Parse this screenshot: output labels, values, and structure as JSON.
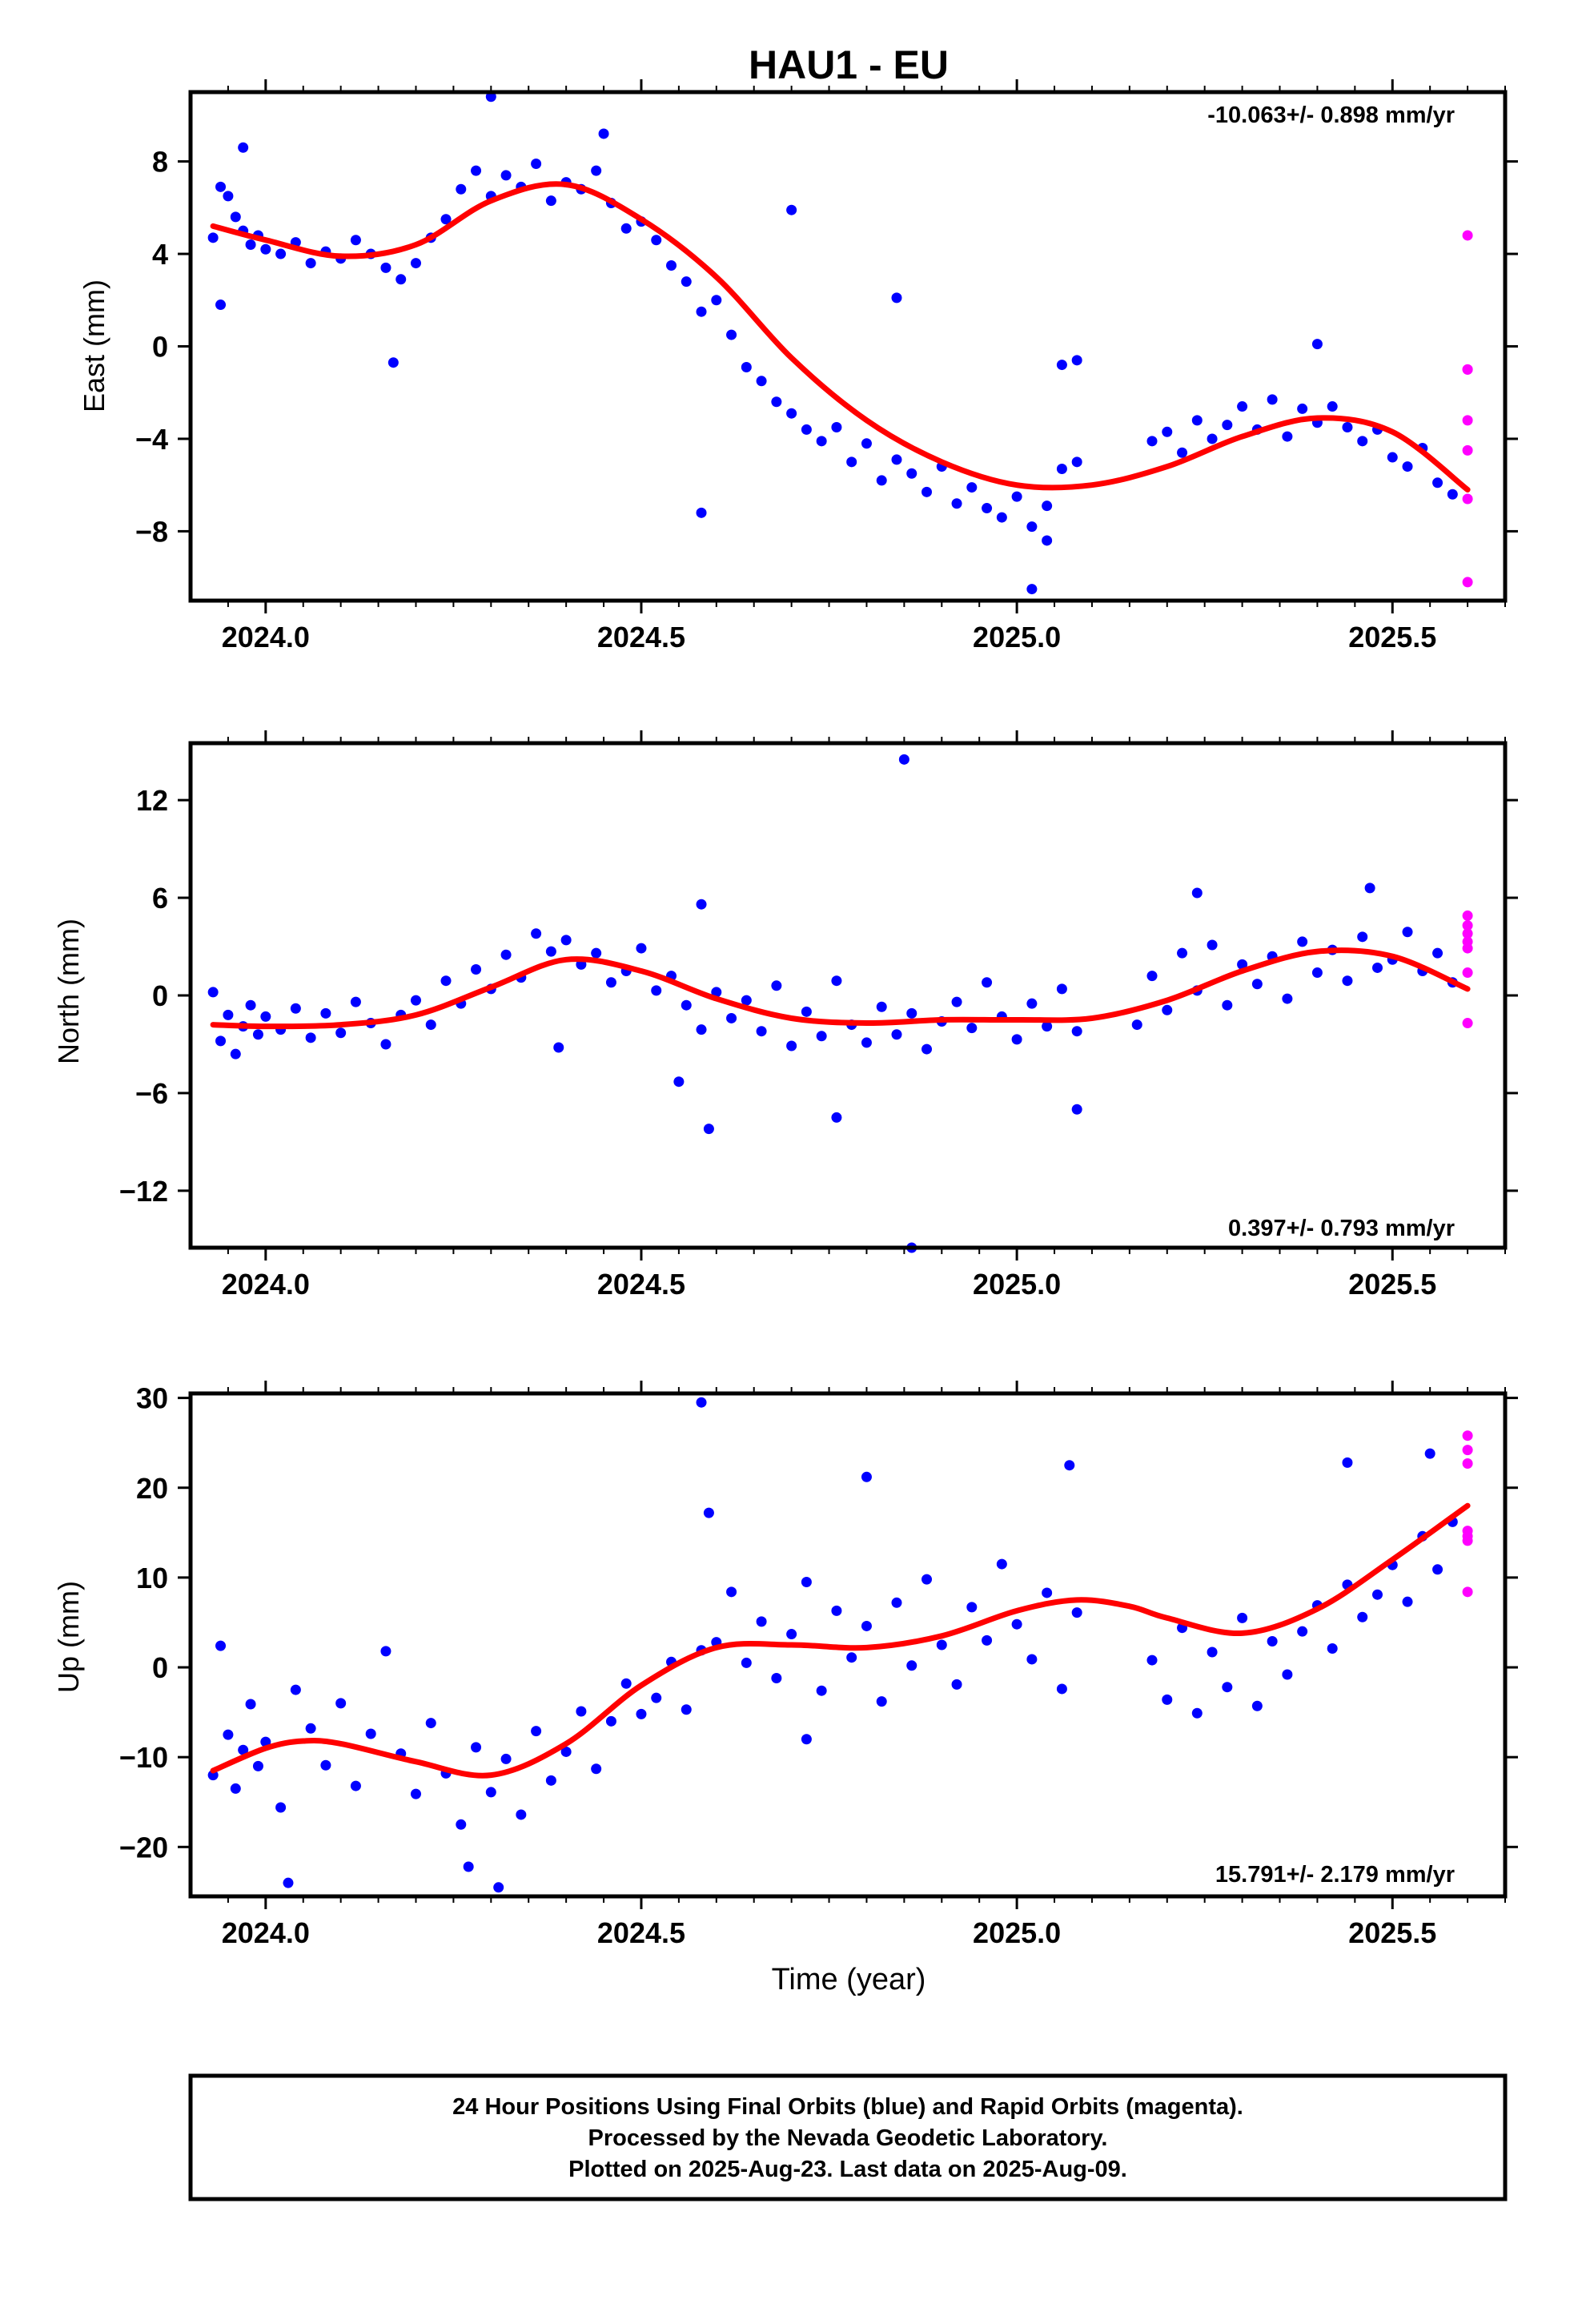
{
  "title": "HAU1 - EU",
  "x_axis_label": "Time (year)",
  "footer": [
    "24 Hour Positions Using Final Orbits (blue) and Rapid Orbits (magenta).",
    "Processed by the Nevada Geodetic Laboratory.",
    "Plotted on 2025-Aug-23. Last data on 2025-Aug-09."
  ],
  "colors": {
    "final": "#0000ff",
    "rapid": "#ff00ff",
    "model": "#ff0000",
    "axis": "#000000"
  },
  "chart_data": [
    {
      "type": "scatter",
      "ylabel": "East (mm)",
      "rate_text": "-10.063+/- 0.898 mm/yr",
      "rate_position": "top-right",
      "xlim": [
        2023.9,
        2025.65
      ],
      "ylim": [
        -11,
        11
      ],
      "xticks": [
        2024.0,
        2024.5,
        2025.0,
        2025.5
      ],
      "xtick_labels": [
        "2024.0",
        "2024.5",
        "2025.0",
        "2025.5"
      ],
      "yticks": [
        8,
        4,
        0,
        -4,
        -8
      ],
      "ytick_labels": [
        "8",
        "4",
        "0",
        "−4",
        "−8"
      ],
      "trend": {
        "x": [
          2023.93,
          2024.0,
          2024.1,
          2024.2,
          2024.3,
          2024.4,
          2024.5,
          2024.6,
          2024.7,
          2024.8,
          2024.9,
          2025.0,
          2025.1,
          2025.2,
          2025.3,
          2025.4,
          2025.5,
          2025.6
        ],
        "y": [
          5.2,
          4.6,
          3.9,
          4.4,
          6.3,
          7.0,
          5.5,
          3.0,
          -0.5,
          -3.2,
          -5.0,
          -6.0,
          -6.0,
          -5.2,
          -3.9,
          -3.1,
          -3.7,
          -6.2
        ]
      },
      "series": [
        {
          "role": "final",
          "x": [
            2023.93,
            2023.94,
            2023.95,
            2023.96,
            2023.97,
            2023.98,
            2023.99,
            2024.0,
            2024.02,
            2024.04,
            2024.06,
            2024.08,
            2024.1,
            2024.12,
            2024.14,
            2024.16,
            2024.18,
            2024.2,
            2024.22,
            2024.24,
            2024.26,
            2024.28,
            2024.3,
            2024.32,
            2024.34,
            2024.36,
            2024.38,
            2024.4,
            2024.42,
            2024.44,
            2024.46,
            2024.48,
            2024.5,
            2024.52,
            2024.54,
            2024.56,
            2024.58,
            2024.6,
            2024.62,
            2024.64,
            2024.66,
            2024.68,
            2024.7,
            2024.72,
            2024.74,
            2024.76,
            2024.78,
            2024.8,
            2024.82,
            2024.84,
            2024.86,
            2024.88,
            2024.9,
            2024.92,
            2024.94,
            2024.96,
            2024.98,
            2025.0,
            2025.02,
            2025.04,
            2025.06,
            2025.08,
            2025.18,
            2025.2,
            2025.22,
            2025.24,
            2025.26,
            2025.28,
            2025.3,
            2025.32,
            2025.34,
            2025.36,
            2025.38,
            2025.4,
            2025.42,
            2025.44,
            2025.46,
            2025.48,
            2025.5,
            2025.52,
            2025.54,
            2025.56,
            2025.58,
            2023.94,
            2023.97,
            2024.17,
            2024.3,
            2024.45,
            2024.58,
            2024.7,
            2024.84,
            2025.06,
            2025.02,
            2025.04,
            2025.08,
            2025.4
          ],
          "y": [
            4.7,
            6.9,
            6.5,
            5.6,
            5.0,
            4.4,
            4.8,
            4.2,
            4.0,
            4.5,
            3.6,
            4.1,
            3.8,
            4.6,
            4.0,
            3.4,
            2.9,
            3.6,
            4.7,
            5.5,
            6.8,
            7.6,
            6.5,
            7.4,
            6.9,
            7.9,
            6.3,
            7.1,
            6.8,
            7.6,
            6.2,
            5.1,
            5.4,
            4.6,
            3.5,
            2.8,
            1.5,
            2.0,
            0.5,
            -0.9,
            -1.5,
            -2.4,
            -2.9,
            -3.6,
            -4.1,
            -3.5,
            -5.0,
            -4.2,
            -5.8,
            -4.9,
            -5.5,
            -6.3,
            -5.2,
            -6.8,
            -6.1,
            -7.0,
            -7.4,
            -6.5,
            -7.8,
            -6.9,
            -5.3,
            -5.0,
            -4.1,
            -3.7,
            -4.6,
            -3.2,
            -4.0,
            -3.4,
            -2.6,
            -3.6,
            -2.3,
            -3.9,
            -2.7,
            -3.3,
            -2.6,
            -3.5,
            -4.1,
            -3.6,
            -4.8,
            -5.2,
            -4.4,
            -5.9,
            -6.4,
            1.8,
            8.6,
            -0.7,
            10.8,
            9.2,
            -7.2,
            5.9,
            2.1,
            -0.8,
            -10.5,
            -8.4,
            -0.6,
            0.1
          ]
        },
        {
          "role": "rapid",
          "x": [
            2025.6,
            2025.6,
            2025.6,
            2025.6,
            2025.6,
            2025.6,
            2025.6
          ],
          "y": [
            4.8,
            -1.0,
            -1.0,
            -3.2,
            -4.5,
            -6.6,
            -10.2
          ]
        }
      ]
    },
    {
      "type": "scatter",
      "ylabel": "North (mm)",
      "rate_text": "0.397+/- 0.793 mm/yr",
      "rate_position": "bottom-right",
      "xlim": [
        2023.9,
        2025.65
      ],
      "ylim": [
        -15.5,
        15.5
      ],
      "xticks": [
        2024.0,
        2024.5,
        2025.0,
        2025.5
      ],
      "xtick_labels": [
        "2024.0",
        "2024.5",
        "2025.0",
        "2025.5"
      ],
      "yticks": [
        12,
        6,
        0,
        -6,
        -12
      ],
      "ytick_labels": [
        "12",
        "6",
        "0",
        "−6",
        "−12"
      ],
      "trend": {
        "x": [
          2023.93,
          2024.0,
          2024.1,
          2024.2,
          2024.3,
          2024.4,
          2024.5,
          2024.6,
          2024.7,
          2024.8,
          2024.9,
          2025.0,
          2025.1,
          2025.2,
          2025.3,
          2025.4,
          2025.5,
          2025.6
        ],
        "y": [
          -1.8,
          -1.9,
          -1.8,
          -1.2,
          0.5,
          2.2,
          1.5,
          -0.2,
          -1.4,
          -1.7,
          -1.5,
          -1.5,
          -1.4,
          -0.3,
          1.5,
          2.7,
          2.4,
          0.4
        ]
      },
      "series": [
        {
          "role": "final",
          "x": [
            2023.93,
            2023.94,
            2023.95,
            2023.96,
            2023.97,
            2023.98,
            2023.99,
            2024.0,
            2024.02,
            2024.04,
            2024.06,
            2024.08,
            2024.1,
            2024.12,
            2024.14,
            2024.16,
            2024.18,
            2024.2,
            2024.22,
            2024.24,
            2024.26,
            2024.28,
            2024.3,
            2024.32,
            2024.34,
            2024.36,
            2024.38,
            2024.4,
            2024.42,
            2024.44,
            2024.46,
            2024.48,
            2024.5,
            2024.52,
            2024.54,
            2024.56,
            2024.58,
            2024.6,
            2024.62,
            2024.64,
            2024.66,
            2024.68,
            2024.7,
            2024.72,
            2024.74,
            2024.76,
            2024.78,
            2024.8,
            2024.82,
            2024.84,
            2024.86,
            2024.88,
            2024.9,
            2024.92,
            2024.94,
            2024.96,
            2024.98,
            2025.0,
            2025.02,
            2025.04,
            2025.06,
            2025.08,
            2025.16,
            2025.18,
            2025.2,
            2025.22,
            2025.24,
            2025.26,
            2025.28,
            2025.3,
            2025.32,
            2025.34,
            2025.36,
            2025.38,
            2025.4,
            2025.42,
            2025.44,
            2025.46,
            2025.48,
            2025.5,
            2025.52,
            2025.54,
            2025.56,
            2025.58,
            2024.58,
            2024.59,
            2024.55,
            2024.39,
            2024.76,
            2024.85,
            2024.86,
            2025.08,
            2025.24,
            2025.47
          ],
          "y": [
            0.2,
            -2.8,
            -1.2,
            -3.6,
            -1.9,
            -0.6,
            -2.4,
            -1.3,
            -2.1,
            -0.8,
            -2.6,
            -1.1,
            -2.3,
            -0.4,
            -1.7,
            -3.0,
            -1.2,
            -0.3,
            -1.8,
            0.9,
            -0.5,
            1.6,
            0.4,
            2.5,
            1.1,
            3.8,
            2.7,
            3.4,
            1.9,
            2.6,
            0.8,
            1.5,
            2.9,
            0.3,
            1.2,
            -0.6,
            -2.1,
            0.2,
            -1.4,
            -0.3,
            -2.2,
            0.6,
            -3.1,
            -1.0,
            -2.5,
            0.9,
            -1.8,
            -2.9,
            -0.7,
            -2.4,
            -1.1,
            -3.3,
            -1.6,
            -0.4,
            -2.0,
            0.8,
            -1.3,
            -2.7,
            -0.5,
            -1.9,
            0.4,
            -2.2,
            -1.8,
            1.2,
            -0.9,
            2.6,
            0.3,
            3.1,
            -0.6,
            1.9,
            0.7,
            2.4,
            -0.2,
            3.3,
            1.4,
            2.8,
            0.9,
            3.6,
            1.7,
            2.2,
            3.9,
            1.5,
            2.6,
            0.8,
            5.6,
            -8.2,
            -5.3,
            -3.2,
            -7.5,
            14.5,
            -15.5,
            -7.0,
            6.3,
            6.6
          ]
        },
        {
          "role": "rapid",
          "x": [
            2025.6,
            2025.6,
            2025.6,
            2025.6,
            2025.6,
            2025.6,
            2025.6
          ],
          "y": [
            4.9,
            4.3,
            3.8,
            3.3,
            2.9,
            1.4,
            -1.7
          ]
        }
      ]
    },
    {
      "type": "scatter",
      "ylabel": "Up (mm)",
      "rate_text": "15.791+/- 2.179 mm/yr",
      "rate_position": "bottom-right",
      "xlim": [
        2023.9,
        2025.65
      ],
      "ylim": [
        -25.5,
        30.5
      ],
      "xticks": [
        2024.0,
        2024.5,
        2025.0,
        2025.5
      ],
      "xtick_labels": [
        "2024.0",
        "2024.5",
        "2025.0",
        "2025.5"
      ],
      "yticks": [
        30,
        20,
        10,
        0,
        -10,
        -20
      ],
      "ytick_labels": [
        "30",
        "20",
        "10",
        "0",
        "−10",
        "−20"
      ],
      "trend": {
        "x": [
          2023.93,
          2024.0,
          2024.05,
          2024.1,
          2024.2,
          2024.3,
          2024.4,
          2024.5,
          2024.6,
          2024.7,
          2024.8,
          2024.9,
          2025.0,
          2025.08,
          2025.15,
          2025.2,
          2025.3,
          2025.4,
          2025.5,
          2025.6
        ],
        "y": [
          -11.5,
          -9.0,
          -8.2,
          -8.5,
          -10.5,
          -12.0,
          -8.5,
          -2.0,
          2.2,
          2.5,
          2.2,
          3.5,
          6.3,
          7.5,
          6.8,
          5.5,
          3.8,
          6.5,
          12.0,
          18.0
        ]
      },
      "series": [
        {
          "role": "final",
          "x": [
            2023.93,
            2023.94,
            2023.95,
            2023.96,
            2023.97,
            2023.98,
            2023.99,
            2024.0,
            2024.02,
            2024.04,
            2024.06,
            2024.08,
            2024.1,
            2024.12,
            2024.14,
            2024.16,
            2024.18,
            2024.2,
            2024.22,
            2024.24,
            2024.26,
            2024.28,
            2024.3,
            2024.32,
            2024.34,
            2024.36,
            2024.38,
            2024.4,
            2024.42,
            2024.44,
            2024.46,
            2024.48,
            2024.5,
            2024.52,
            2024.54,
            2024.56,
            2024.58,
            2024.6,
            2024.62,
            2024.64,
            2024.66,
            2024.68,
            2024.7,
            2024.72,
            2024.74,
            2024.76,
            2024.78,
            2024.8,
            2024.82,
            2024.84,
            2024.86,
            2024.88,
            2024.9,
            2024.92,
            2024.94,
            2024.96,
            2024.98,
            2025.0,
            2025.02,
            2025.04,
            2025.06,
            2025.08,
            2025.18,
            2025.2,
            2025.22,
            2025.24,
            2025.26,
            2025.28,
            2025.3,
            2025.32,
            2025.34,
            2025.36,
            2025.38,
            2025.4,
            2025.42,
            2025.44,
            2025.46,
            2025.48,
            2025.5,
            2025.52,
            2025.54,
            2025.56,
            2025.58,
            2024.58,
            2024.27,
            2024.31,
            2024.03,
            2024.8,
            2025.07,
            2024.72,
            2024.59,
            2025.44,
            2025.55
          ],
          "y": [
            -12.0,
            2.4,
            -7.5,
            -13.5,
            -9.2,
            -4.1,
            -11.0,
            -8.3,
            -15.6,
            -2.5,
            -6.8,
            -10.9,
            -4.0,
            -13.2,
            -7.4,
            1.8,
            -9.6,
            -14.1,
            -6.2,
            -11.8,
            -17.5,
            -8.9,
            -13.9,
            -10.2,
            -16.4,
            -7.1,
            -12.6,
            -9.4,
            -4.9,
            -11.3,
            -6.0,
            -1.8,
            -5.2,
            -3.4,
            0.6,
            -4.7,
            1.9,
            2.8,
            8.4,
            0.5,
            5.1,
            -1.2,
            3.7,
            9.5,
            -2.6,
            6.3,
            1.1,
            4.6,
            -3.8,
            7.2,
            0.2,
            9.8,
            2.5,
            -1.9,
            6.7,
            3.0,
            11.5,
            4.8,
            0.9,
            8.3,
            -2.4,
            6.1,
            0.8,
            -3.6,
            4.4,
            -5.1,
            1.7,
            -2.2,
            5.5,
            -4.3,
            2.9,
            -0.8,
            4.0,
            6.9,
            2.1,
            9.2,
            5.6,
            8.1,
            11.4,
            7.3,
            14.6,
            10.9,
            16.2,
            29.5,
            -22.2,
            -24.5,
            -24.0,
            21.2,
            22.5,
            -8.0,
            17.2,
            22.8,
            23.8
          ]
        },
        {
          "role": "rapid",
          "x": [
            2025.6,
            2025.6,
            2025.6,
            2025.6,
            2025.6,
            2025.6,
            2025.6
          ],
          "y": [
            25.8,
            24.2,
            22.7,
            15.2,
            14.6,
            14.1,
            8.4
          ]
        }
      ]
    }
  ]
}
